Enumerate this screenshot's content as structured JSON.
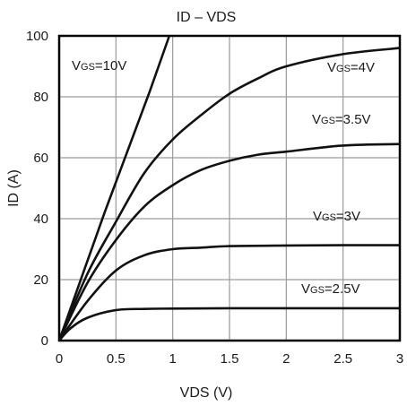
{
  "chart_data": {
    "type": "line",
    "title": "ID  –  VDS",
    "xlabel": "VDS (V)",
    "ylabel": "ID  (A)",
    "xlim": [
      0,
      3
    ],
    "ylim": [
      0,
      100
    ],
    "xticks": [
      "0",
      "0.5",
      "1",
      "1.5",
      "2",
      "2.5",
      "3"
    ],
    "yticks": [
      "0",
      "20",
      "40",
      "60",
      "80",
      "100"
    ],
    "grid": true,
    "series": [
      {
        "name": "VGS=10V",
        "label_main": "V",
        "label_sub": "GS",
        "label_rest": "=10V",
        "x": [
          0,
          0.2,
          0.4,
          0.6,
          0.8,
          0.97
        ],
        "y": [
          0,
          21,
          42,
          62,
          82,
          100
        ]
      },
      {
        "name": "VGS=4V",
        "label_main": "V",
        "label_sub": "GS",
        "label_rest": "=4V",
        "x": [
          0,
          0.25,
          0.5,
          0.75,
          1,
          1.25,
          1.5,
          1.75,
          2,
          2.5,
          3
        ],
        "y": [
          0,
          22,
          39,
          55,
          66,
          74,
          81,
          86,
          90,
          94,
          96
        ]
      },
      {
        "name": "VGS=3.5V",
        "label_main": "V",
        "label_sub": "GS",
        "label_rest": "=3.5V",
        "x": [
          0,
          0.25,
          0.5,
          0.75,
          1,
          1.25,
          1.5,
          1.75,
          2,
          2.5,
          3
        ],
        "y": [
          0,
          19,
          33,
          44,
          51,
          56,
          59,
          61,
          62,
          64,
          64.5
        ]
      },
      {
        "name": "VGS=3V",
        "label_main": "V",
        "label_sub": "GS",
        "label_rest": "=3V",
        "x": [
          0,
          0.25,
          0.5,
          0.75,
          1,
          1.25,
          1.5,
          2,
          2.5,
          3
        ],
        "y": [
          0,
          13,
          23,
          28,
          30,
          30.5,
          31,
          31.2,
          31.3,
          31.3
        ]
      },
      {
        "name": "VGS=2.5V",
        "label_main": "V",
        "label_sub": "GS",
        "label_rest": "=2.5V",
        "x": [
          0,
          0.1,
          0.25,
          0.5,
          0.75,
          1,
          1.5,
          2,
          3
        ],
        "y": [
          0,
          4,
          7.5,
          10,
          10.4,
          10.5,
          10.6,
          10.6,
          10.6
        ]
      }
    ]
  }
}
